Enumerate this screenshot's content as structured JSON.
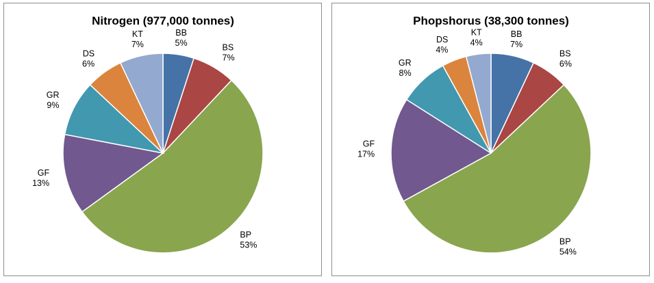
{
  "chart_data": [
    {
      "type": "pie",
      "title": "Nitrogen (977,000 tonnes)",
      "categories": [
        "BB",
        "BS",
        "BP",
        "GF",
        "GR",
        "DS",
        "KT"
      ],
      "values": [
        5,
        7,
        53,
        13,
        9,
        6,
        7
      ],
      "labels": [
        "5%",
        "7%",
        "53%",
        "13%",
        "9%",
        "6%",
        "7%"
      ],
      "start_angle_deg": 0,
      "direction": "clockwise",
      "legend": "none (category labels next to slices)"
    },
    {
      "type": "pie",
      "title": "Phopshorus (38,300 tonnes)",
      "categories": [
        "BB",
        "BS",
        "BP",
        "GF",
        "GR",
        "DS",
        "KT"
      ],
      "values": [
        7,
        6,
        54,
        17,
        8,
        4,
        4
      ],
      "labels": [
        "7%",
        "6%",
        "54%",
        "17%",
        "8%",
        "4%",
        "4%"
      ],
      "start_angle_deg": 0,
      "direction": "clockwise",
      "legend": "none (category labels next to slices)"
    }
  ],
  "colors": {
    "BB": "#4572a7",
    "BS": "#aa4643",
    "BP": "#89a54e",
    "GF": "#71588f",
    "GR": "#4198af",
    "DS": "#db843d",
    "KT": "#93a9cf"
  }
}
